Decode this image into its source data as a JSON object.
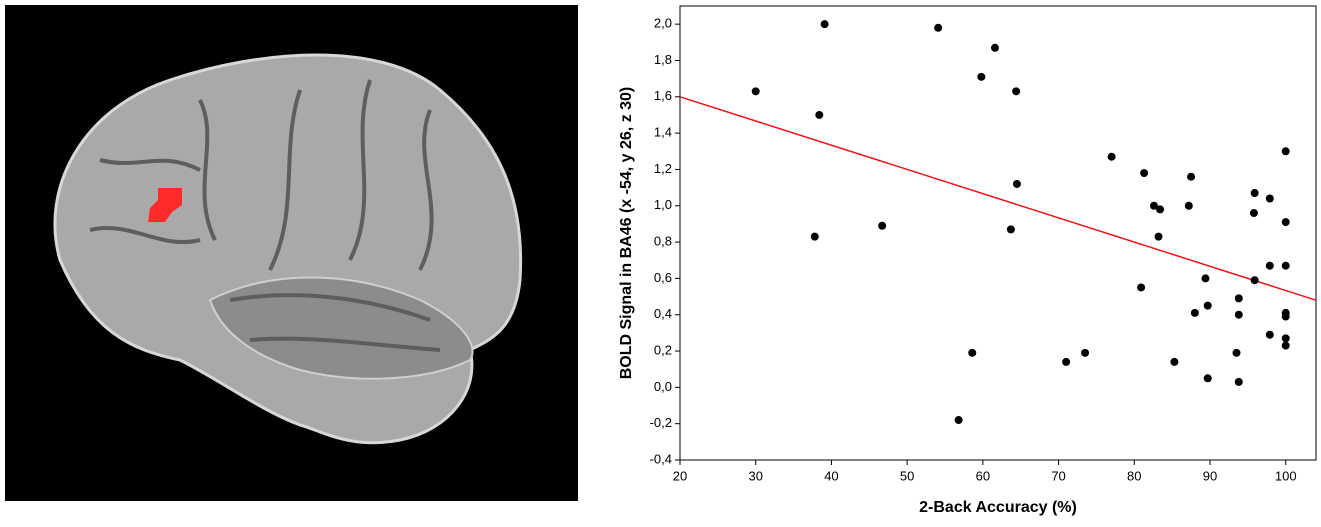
{
  "chart_data": {
    "type": "scatter",
    "x_label": "2-Back Accuracy (%)",
    "y_label": "BOLD Signal in BA46 (x -54, y 26, z 30)",
    "xlim": [
      20,
      104
    ],
    "ylim": [
      -0.4,
      2.1
    ],
    "xticks": [
      20,
      30,
      40,
      50,
      60,
      70,
      80,
      90,
      100
    ],
    "yticks": [
      {
        "value": -0.4,
        "label": "-0,4"
      },
      {
        "value": -0.2,
        "label": "-0,2"
      },
      {
        "value": 0,
        "label": "0,0"
      },
      {
        "value": 0.2,
        "label": "0,2"
      },
      {
        "value": 0.4,
        "label": "0,4"
      },
      {
        "value": 0.6,
        "label": "0,6"
      },
      {
        "value": 0.8,
        "label": "0,8"
      },
      {
        "value": 1.0,
        "label": "1,0"
      },
      {
        "value": 1.2,
        "label": "1,2"
      },
      {
        "value": 1.4,
        "label": "1,4"
      },
      {
        "value": 1.6,
        "label": "1,6"
      },
      {
        "value": 1.8,
        "label": "1,8"
      },
      {
        "value": 2.0,
        "label": "2,0"
      }
    ],
    "grid": false,
    "color": "#000000",
    "x": [
      30,
      39.1,
      38.4,
      37.8,
      46.7,
      54.1,
      61.6,
      59.8,
      64.4,
      64.5,
      63.7,
      58.6,
      56.8,
      71,
      73.5,
      77,
      81.3,
      80.9,
      82.6,
      83.4,
      83.2,
      85.3,
      87.5,
      87.2,
      88,
      89.4,
      89.7,
      89.7,
      93.8,
      93.8,
      93.5,
      93.8,
      95.9,
      95.8,
      95.9,
      97.9,
      97.9,
      97.9,
      100,
      100,
      100,
      100,
      100,
      100,
      100
    ],
    "values": [
      1.63,
      2.0,
      1.5,
      0.83,
      0.89,
      1.98,
      1.87,
      1.71,
      1.63,
      1.12,
      0.87,
      0.19,
      -0.18,
      0.14,
      0.19,
      1.27,
      1.18,
      0.55,
      1.0,
      0.98,
      0.83,
      0.14,
      1.16,
      1.0,
      0.41,
      0.6,
      0.45,
      0.05,
      0.49,
      0.4,
      0.19,
      0.03,
      1.07,
      0.96,
      0.59,
      1.04,
      0.67,
      0.29,
      1.3,
      0.91,
      0.67,
      0.41,
      0.39,
      0.27,
      0.23
    ],
    "fit_line": {
      "x": [
        20,
        104
      ],
      "y": [
        1.6,
        0.48
      ],
      "color": "#e8141b"
    }
  }
}
